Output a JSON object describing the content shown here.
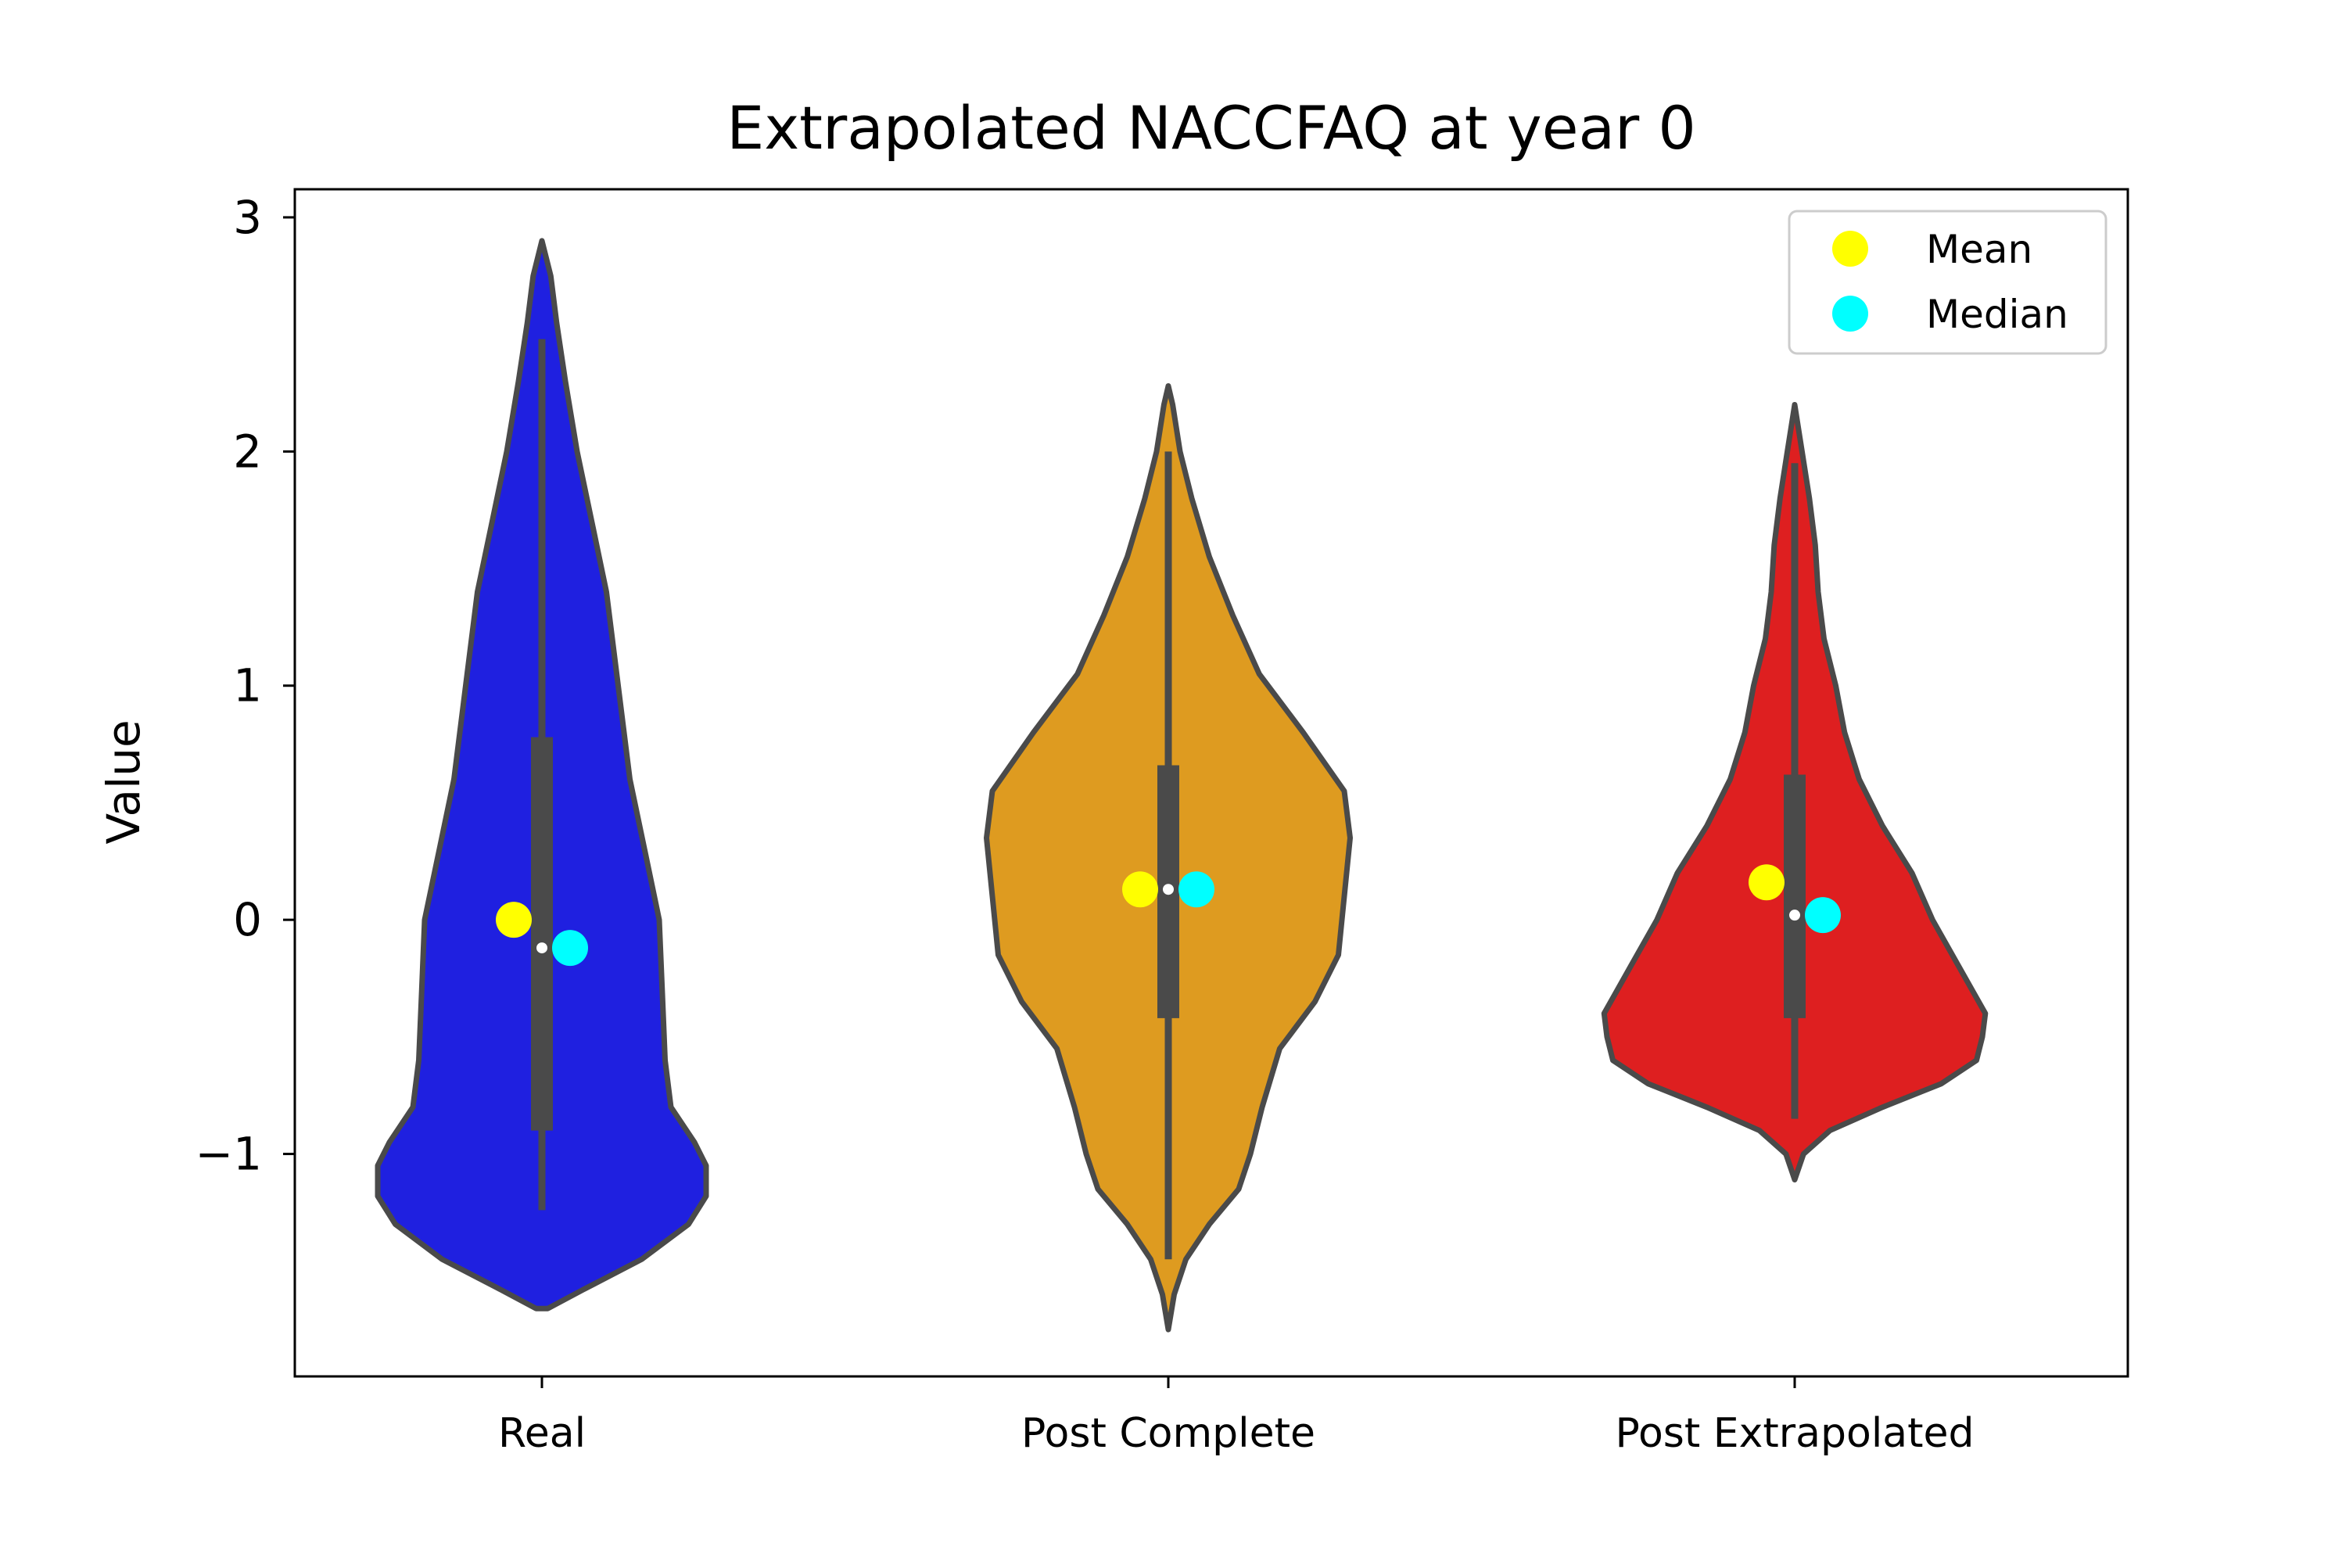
{
  "chart_data": {
    "type": "violin",
    "title": "Extrapolated NACCFAQ at year 0",
    "xlabel": "",
    "ylabel": "Value",
    "ylim": [
      -1.95,
      3.12
    ],
    "yticks": [
      -1,
      0,
      1,
      2,
      3
    ],
    "ytick_labels": [
      "−1",
      "0",
      "1",
      "2",
      "3"
    ],
    "grid": false,
    "legend": {
      "placement": "top-right",
      "entries": [
        {
          "label": "Mean",
          "color": "#ffff00"
        },
        {
          "label": "Median",
          "color": "#00ffff"
        }
      ]
    },
    "categories": [
      "Real",
      "Post Complete",
      "Post Extrapolated"
    ],
    "series": [
      {
        "category": "Real",
        "fill_color": "#1f20e0",
        "mean": 0.0,
        "median": -0.12,
        "quartiles": [
          -0.9,
          0.78
        ],
        "whiskers": [
          -1.24,
          2.48
        ],
        "range": [
          -1.66,
          2.9
        ],
        "density_profile": [
          [
            -1.66,
            0.02
          ],
          [
            -1.58,
            0.14
          ],
          [
            -1.45,
            0.34
          ],
          [
            -1.3,
            0.5
          ],
          [
            -1.18,
            0.56
          ],
          [
            -1.05,
            0.56
          ],
          [
            -0.95,
            0.52
          ],
          [
            -0.8,
            0.44
          ],
          [
            -0.6,
            0.42
          ],
          [
            -0.3,
            0.41
          ],
          [
            0.0,
            0.4
          ],
          [
            0.3,
            0.35
          ],
          [
            0.6,
            0.3
          ],
          [
            1.0,
            0.26
          ],
          [
            1.4,
            0.22
          ],
          [
            1.7,
            0.17
          ],
          [
            2.0,
            0.12
          ],
          [
            2.3,
            0.08
          ],
          [
            2.55,
            0.05
          ],
          [
            2.75,
            0.03
          ],
          [
            2.9,
            0.0
          ]
        ]
      },
      {
        "category": "Post Complete",
        "fill_color": "#de9b20",
        "mean": 0.13,
        "median": 0.13,
        "quartiles": [
          -0.42,
          0.66
        ],
        "whiskers": [
          -1.45,
          2.0
        ],
        "range": [
          -1.75,
          2.28
        ],
        "density_profile": [
          [
            -1.75,
            0.0
          ],
          [
            -1.6,
            0.02
          ],
          [
            -1.45,
            0.06
          ],
          [
            -1.3,
            0.14
          ],
          [
            -1.15,
            0.24
          ],
          [
            -1.0,
            0.28
          ],
          [
            -0.8,
            0.32
          ],
          [
            -0.55,
            0.38
          ],
          [
            -0.35,
            0.5
          ],
          [
            -0.15,
            0.58
          ],
          [
            0.1,
            0.6
          ],
          [
            0.35,
            0.62
          ],
          [
            0.55,
            0.6
          ],
          [
            0.8,
            0.46
          ],
          [
            1.05,
            0.31
          ],
          [
            1.3,
            0.22
          ],
          [
            1.55,
            0.14
          ],
          [
            1.8,
            0.08
          ],
          [
            2.0,
            0.04
          ],
          [
            2.2,
            0.015
          ],
          [
            2.28,
            0.0
          ]
        ]
      },
      {
        "category": "Post Extrapolated",
        "fill_color": "#de1f20",
        "mean": 0.16,
        "median": 0.02,
        "quartiles": [
          -0.42,
          0.62
        ],
        "whiskers": [
          -0.85,
          1.95
        ],
        "range": [
          -1.11,
          2.2
        ],
        "density_profile": [
          [
            -1.11,
            0.0
          ],
          [
            -1.0,
            0.03
          ],
          [
            -0.9,
            0.12
          ],
          [
            -0.8,
            0.3
          ],
          [
            -0.7,
            0.5
          ],
          [
            -0.6,
            0.62
          ],
          [
            -0.5,
            0.64
          ],
          [
            -0.4,
            0.65
          ],
          [
            -0.2,
            0.56
          ],
          [
            0.0,
            0.47
          ],
          [
            0.2,
            0.4
          ],
          [
            0.4,
            0.3
          ],
          [
            0.6,
            0.22
          ],
          [
            0.8,
            0.17
          ],
          [
            1.0,
            0.14
          ],
          [
            1.2,
            0.1
          ],
          [
            1.4,
            0.08
          ],
          [
            1.6,
            0.07
          ],
          [
            1.8,
            0.05
          ],
          [
            2.0,
            0.025
          ],
          [
            2.2,
            0.0
          ]
        ]
      }
    ]
  }
}
